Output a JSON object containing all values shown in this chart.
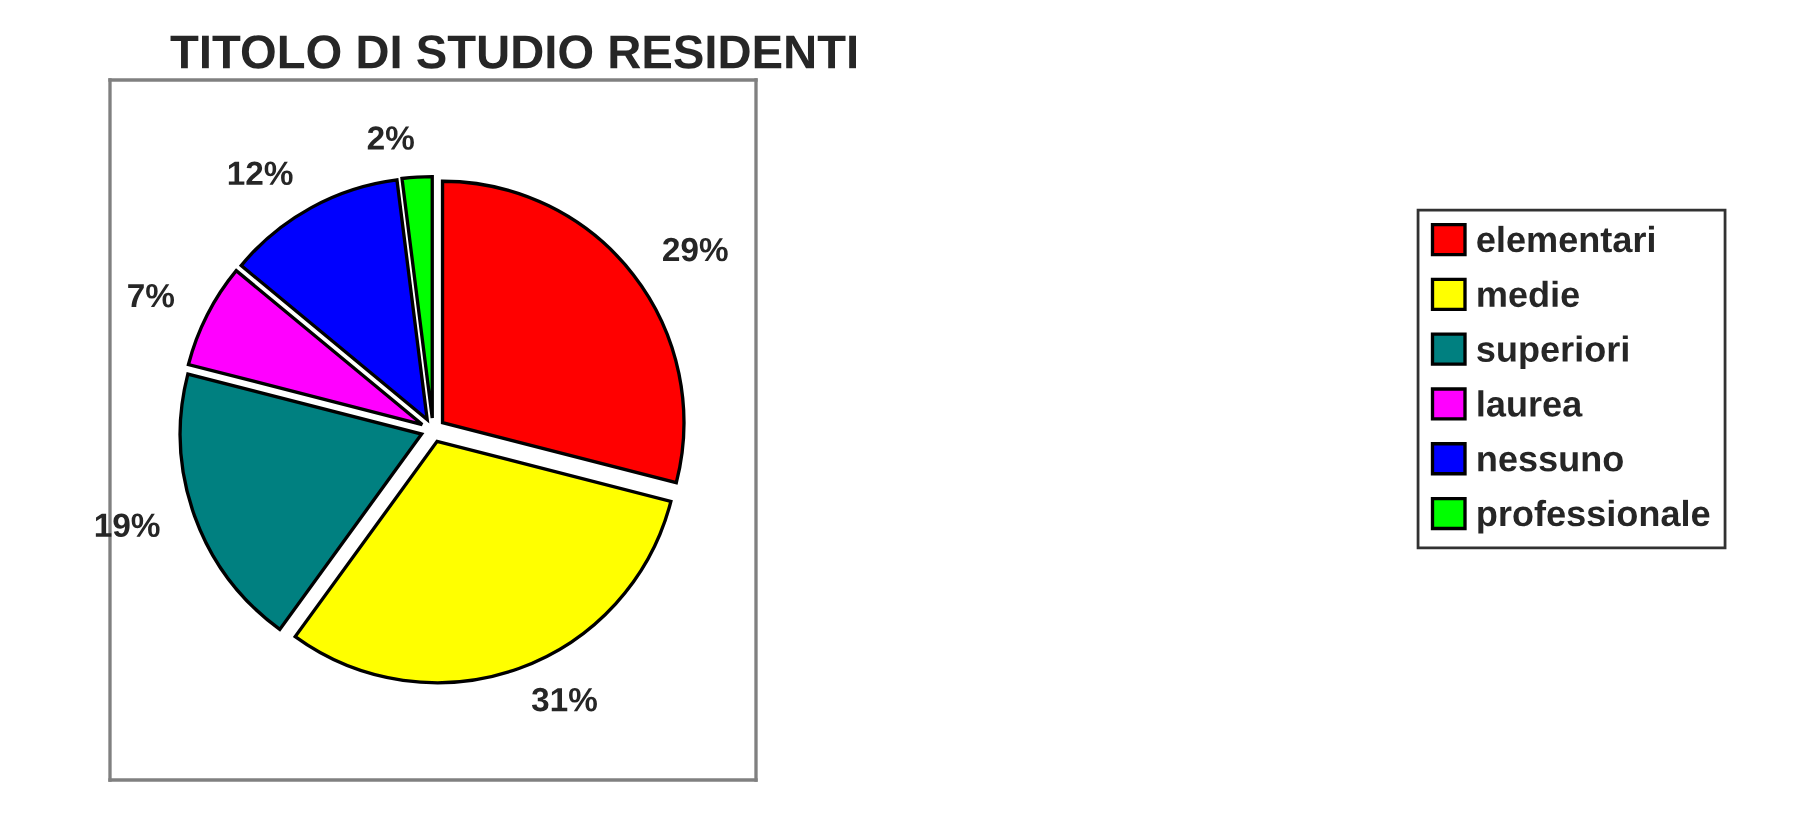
{
  "chart_data": {
    "type": "pie",
    "title": "TITOLO DI STUDIO RESIDENTI",
    "categories": [
      "elementari",
      "medie",
      "superiori",
      "laurea",
      "nessuno",
      "professionale"
    ],
    "values": [
      29,
      31,
      19,
      7,
      12,
      2
    ],
    "value_labels": [
      "29%",
      "31%",
      "19%",
      "7%",
      "12%",
      "2%"
    ],
    "colors": [
      "#ff0000",
      "#ffff00",
      "#008080",
      "#ff00ff",
      "#0000ff",
      "#00ff00"
    ],
    "legend": "right"
  }
}
